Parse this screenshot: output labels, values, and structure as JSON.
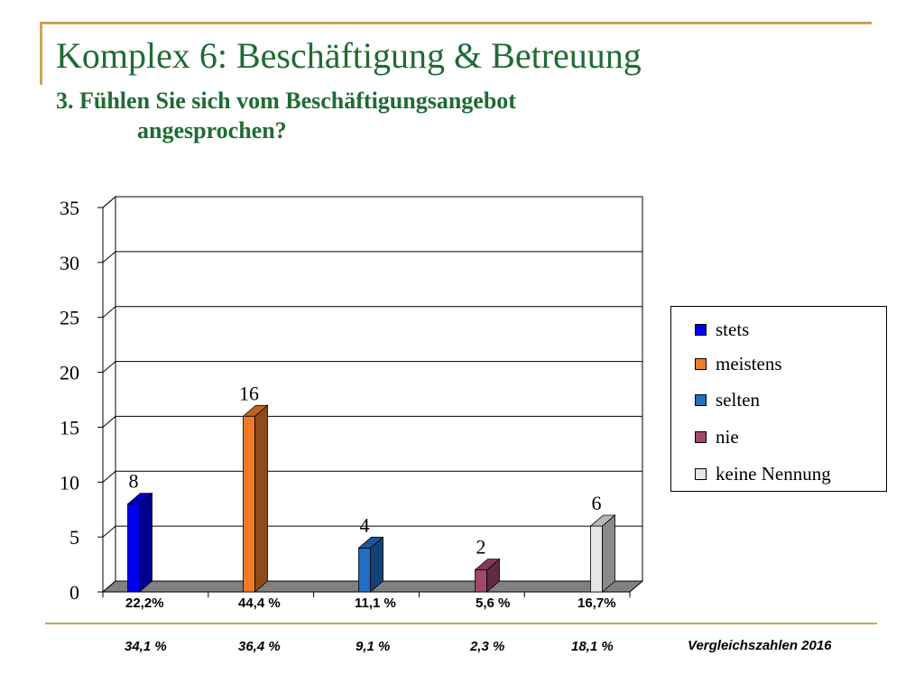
{
  "slide": {
    "title": "Komplex 6: Beschäftigung & Betreuung",
    "subtitle_line1": "3. Fühlen Sie sich vom Beschäftigungsangebot",
    "subtitle_line2": "angesprochen?"
  },
  "chart_data": {
    "type": "bar",
    "categories": [
      "stets",
      "meistens",
      "selten",
      "nie",
      "keine Nennung"
    ],
    "values": [
      8,
      16,
      4,
      2,
      6
    ],
    "data_labels": [
      "8",
      "16",
      "4",
      "2",
      "6"
    ],
    "percent_labels": [
      "22,2%",
      "44,4 %",
      "11,1 %",
      "5,6 %",
      "16,7%"
    ],
    "ylim": [
      0,
      35
    ],
    "yticks": [
      0,
      5,
      10,
      15,
      20,
      25,
      30,
      35
    ],
    "ytick_labels": [
      "0",
      "5",
      "10",
      "15",
      "20",
      "25",
      "30",
      "35"
    ],
    "grid": true,
    "legend_position": "right",
    "colors": [
      "#0000ee",
      "#f07a28",
      "#1f6fc2",
      "#a0486a",
      "#e6e6e6"
    ],
    "legend": [
      "stets",
      "meistens",
      "selten",
      "nie",
      "keine Nennung"
    ]
  },
  "comparison": {
    "label": "Vergleichszahlen 2016",
    "values": [
      "34,1 %",
      "36,4 %",
      "9,1 %",
      "2,3 %",
      "18,1 %"
    ]
  },
  "frame_color": "#c8a84b",
  "title_color": "#1f6b33"
}
